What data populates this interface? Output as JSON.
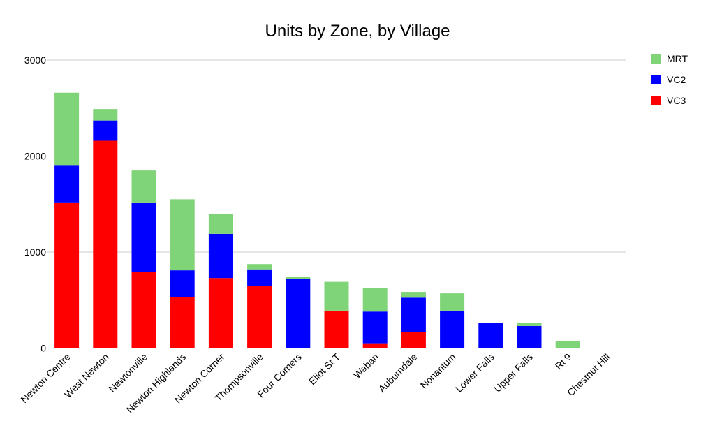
{
  "chart_data": {
    "type": "bar",
    "stacked": true,
    "title": "Units by Zone, by Village",
    "xlabel": "",
    "ylabel": "",
    "ylim": [
      0,
      3000
    ],
    "yticks": [
      "0",
      "1000",
      "2000",
      "3000"
    ],
    "grid": true,
    "legend_position": "top-right",
    "categories": [
      "Newton Centre",
      "West Newton",
      "Newtonville",
      "Newton Highlands",
      "Newton Corner",
      "Thompsonville",
      "Four Corners",
      "Eliot St T",
      "Waban",
      "Auburndale",
      "Nonantum",
      "Lower Falls",
      "Upper Falls",
      "Rt 9",
      "Chestnut Hill"
    ],
    "series": [
      {
        "name": "VC3",
        "color": "#ff0000",
        "values": [
          1510,
          2160,
          790,
          530,
          730,
          650,
          0,
          390,
          50,
          165,
          0,
          0,
          0,
          0,
          0
        ]
      },
      {
        "name": "VC2",
        "color": "#0000ff",
        "values": [
          390,
          210,
          720,
          280,
          460,
          170,
          720,
          0,
          330,
          360,
          390,
          265,
          230,
          0,
          0
        ]
      },
      {
        "name": "MRT",
        "color": "#7fd478",
        "values": [
          760,
          120,
          340,
          740,
          210,
          55,
          20,
          300,
          245,
          60,
          180,
          0,
          30,
          70,
          0
        ]
      }
    ],
    "legend_order": [
      "MRT",
      "VC2",
      "VC3"
    ]
  }
}
